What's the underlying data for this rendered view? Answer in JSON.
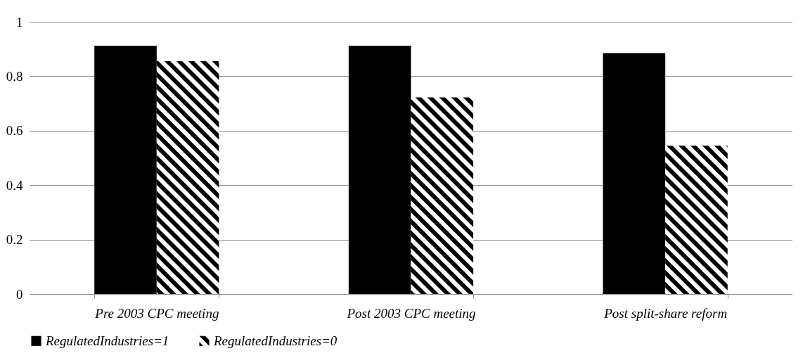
{
  "chart_data": {
    "type": "bar",
    "categories": [
      "Pre 2003 CPC meeting",
      "Post 2003 CPC meeting",
      "Post split-share reform"
    ],
    "series": [
      {
        "name": "RegulatedIndustries=1",
        "color": "#000000",
        "values": [
          0.912,
          0.912,
          0.885
        ]
      },
      {
        "name": "RegulatedIndustries=0",
        "color": "#000000",
        "values": [
          0.855,
          0.722,
          0.545
        ]
      }
    ],
    "ylim": [
      0,
      1
    ],
    "yticks": [
      0,
      0.2,
      0.4,
      0.6,
      0.8,
      1
    ],
    "grid": "y",
    "legend": "bottom"
  }
}
